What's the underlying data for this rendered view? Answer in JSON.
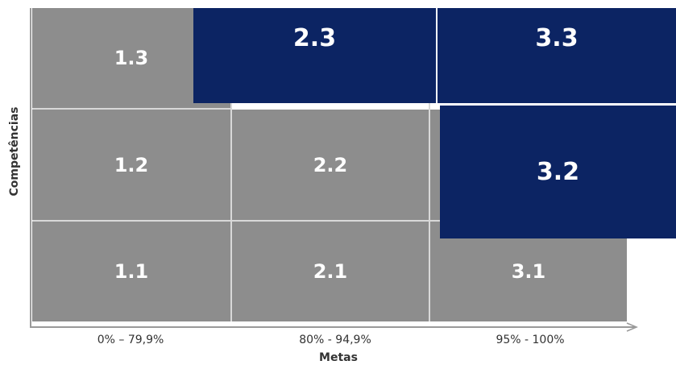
{
  "matrix": {
    "x_axis": {
      "title": "Metas",
      "ticks": [
        "0% – 79,9%",
        "80% - 94,9%",
        "95% - 100%"
      ]
    },
    "y_axis": {
      "title": "Competências"
    },
    "cells": {
      "c11": "1.1",
      "c12": "1.2",
      "c13": "1.3",
      "c21": "2.1",
      "c22": "2.2",
      "c23": "2.3",
      "c31": "3.1",
      "c32": "3.2",
      "c33": "3.3"
    },
    "colors": {
      "highlight": "#0c2463",
      "base": "#8d8d8d",
      "text": "#ffffff"
    }
  }
}
